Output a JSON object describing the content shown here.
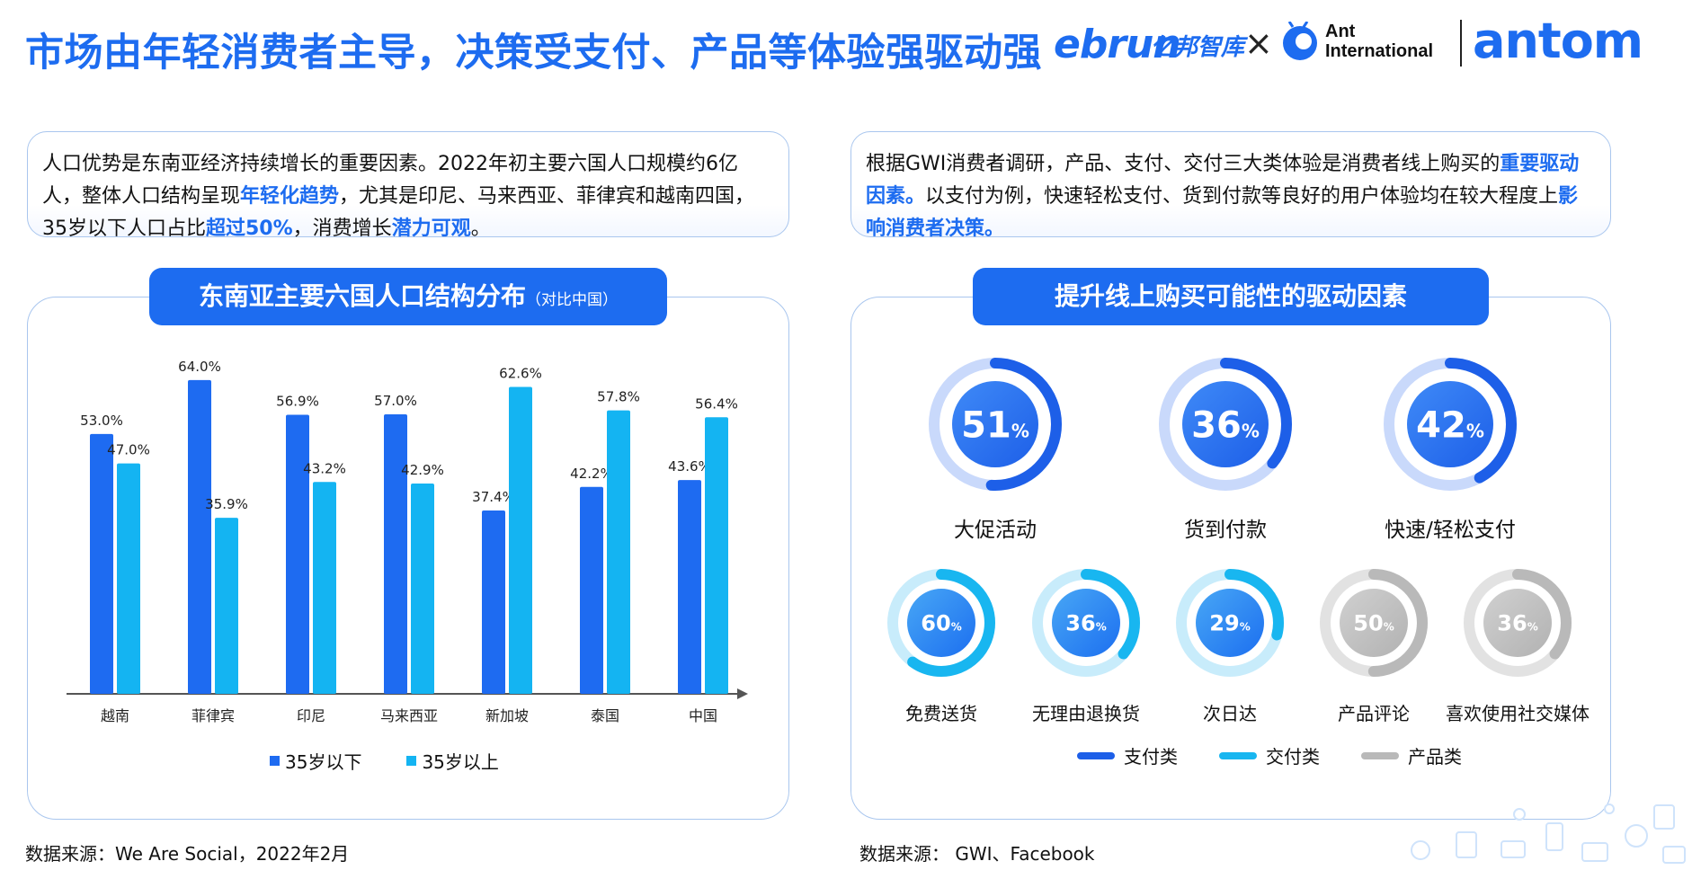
{
  "title": "市场由年轻消费者主导，决策受支付、产品等体验强驱动强",
  "logos": {
    "ebrun": "ebrun",
    "ebrun_cn": "亿邦智库",
    "times": "×",
    "ant_line1": "Ant",
    "ant_line2": "International",
    "antom": "antom"
  },
  "left_text": {
    "p1": "人口优势是东南亚经济持续增长的重要因素。2022年初主要六国人口规模约6亿人，整体人口结构呈现",
    "h1": "年轻化趋势",
    "p2": "，尤其是印尼、马来西亚、菲律宾和越南四国，35岁以下人口占比",
    "h2": "超过50%",
    "p3": "，消费增长",
    "h3": "潜力可观",
    "p4": "。"
  },
  "right_text": {
    "p1": "根据GWI消费者调研，产品、支付、交付三大类体验是消费者线上购买的",
    "h1": "重要驱动因素。",
    "p2": "以支付为例，快速轻松支付、货到付款等良好的用户体验均在较大程度上",
    "h2": "影响消费者决策。"
  },
  "left_panel": {
    "header": "东南亚主要六国人口结构分布",
    "header_sub": "（对比中国）"
  },
  "right_panel": {
    "header": "提升线上购买可能性的驱动因素"
  },
  "chart_data": {
    "type": "bar",
    "categories": [
      "越南",
      "菲律宾",
      "印尼",
      "马来西亚",
      "新加坡",
      "泰国",
      "中国"
    ],
    "series": [
      {
        "name": "35岁以下",
        "color": "#1e6bf1",
        "values": [
          53.0,
          64.0,
          56.9,
          57.0,
          37.4,
          42.2,
          43.6
        ],
        "labels": [
          "53.0%",
          "64.0%",
          "56.9%",
          "57.0%",
          "37.4%",
          "42.2%",
          "43.6%"
        ]
      },
      {
        "name": "35岁以上",
        "color": "#14b4f2",
        "values": [
          47.0,
          35.9,
          43.2,
          42.9,
          62.6,
          57.8,
          56.4
        ],
        "labels": [
          "47.0%",
          "35.9%",
          "43.2%",
          "42.9%",
          "62.6%",
          "57.8%",
          "56.4%"
        ]
      }
    ],
    "ylim": [
      0,
      70
    ],
    "grid": false
  },
  "drivers": {
    "large": [
      {
        "value": 51,
        "unit": "%",
        "label": "大促活动",
        "category": "支付类"
      },
      {
        "value": 36,
        "unit": "%",
        "label": "货到付款",
        "category": "支付类"
      },
      {
        "value": 42,
        "unit": "%",
        "label": "快速/轻松支付",
        "category": "支付类"
      }
    ],
    "small": [
      {
        "value": 60,
        "unit": "%",
        "label": "免费送货",
        "category": "交付类"
      },
      {
        "value": 36,
        "unit": "%",
        "label": "无理由退换货",
        "category": "交付类"
      },
      {
        "value": 29,
        "unit": "%",
        "label": "次日达",
        "category": "交付类"
      },
      {
        "value": 50,
        "unit": "%",
        "label": "产品评论",
        "category": "产品类"
      },
      {
        "value": 36,
        "unit": "%",
        "label": "喜欢使用社交媒体",
        "category": "产品类"
      }
    ],
    "legend": [
      {
        "name": "支付类",
        "color": "#1d5fe8"
      },
      {
        "name": "交付类",
        "color": "#18b6f0"
      },
      {
        "name": "产品类",
        "color": "#b9b9b9"
      }
    ]
  },
  "sources": {
    "left": "数据来源：We Are Social，2022年2月",
    "right": "数据来源：  GWI、Facebook"
  }
}
